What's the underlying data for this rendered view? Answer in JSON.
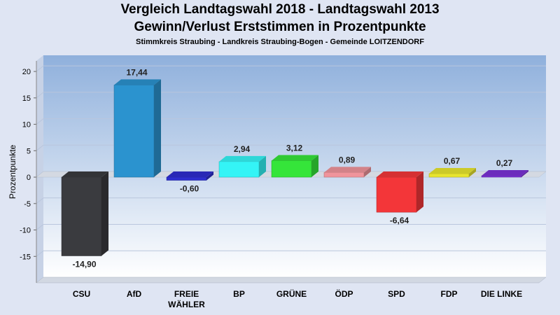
{
  "chart_data": {
    "type": "bar",
    "title": "Vergleich Landtagswahl 2018 - Landtagswahl 2013",
    "title_line2": "Gewinn/Verlust Erststimmen in Prozentpunkte",
    "subtitle": "Stimmkreis Straubing - Landkreis Straubing-Bogen - Gemeinde LOITZENDORF",
    "ylabel": "Prozentpunkte",
    "xlabel": "",
    "ylim": [
      -20,
      22
    ],
    "yticks": [
      -15,
      -10,
      -5,
      0,
      5,
      10,
      15,
      20
    ],
    "grid": true,
    "categories": [
      "CSU",
      "AfD",
      "FREIE\nWÄHLER",
      "BP",
      "GRÜNE",
      "ÖDP",
      "SPD",
      "FDP",
      "DIE LINKE"
    ],
    "values": [
      -14.9,
      17.44,
      -0.6,
      2.94,
      3.12,
      0.89,
      -6.64,
      0.67,
      0.27
    ],
    "value_labels": [
      "-14,90",
      "17,44",
      "-0,60",
      "2,94",
      "3,12",
      "0,89",
      "-6,64",
      "0,67",
      "0,27"
    ],
    "colors": [
      "#3a3b3f",
      "#2b93cf",
      "#2d2ecf",
      "#34f4f6",
      "#35e53a",
      "#f0949b",
      "#f33639",
      "#e8e52e",
      "#7b32d6"
    ]
  }
}
